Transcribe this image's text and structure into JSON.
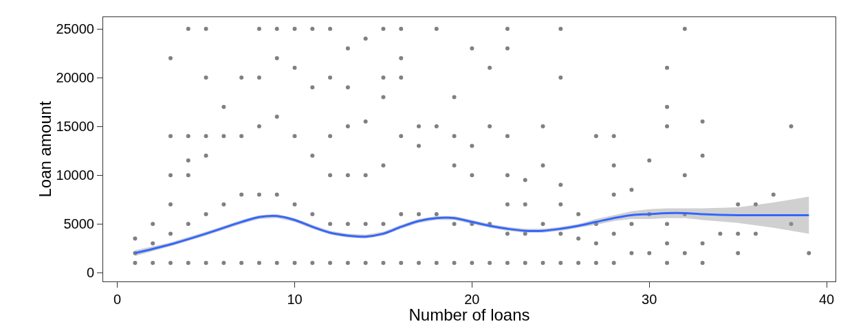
{
  "chart_data": {
    "type": "scatter",
    "xlabel": "Number of loans",
    "ylabel": "Loan amount",
    "xlim": [
      -0.8,
      40.5
    ],
    "ylim": [
      -900,
      26200
    ],
    "xticks": [
      0,
      10,
      20,
      30,
      40
    ],
    "yticks": [
      0,
      5000,
      10000,
      15000,
      20000,
      25000
    ],
    "grid": false,
    "marker": "circle",
    "series": [
      {
        "color": "#808080",
        "x": [
          1,
          1,
          1,
          2,
          2,
          2,
          3,
          3,
          3,
          3,
          3,
          3,
          4,
          4,
          4,
          4,
          4,
          4,
          5,
          5,
          5,
          5,
          5,
          5,
          6,
          6,
          6,
          6,
          7,
          7,
          7,
          7,
          8,
          8,
          8,
          8,
          8,
          9,
          9,
          9,
          9,
          9,
          10,
          10,
          10,
          10,
          10,
          11,
          11,
          11,
          11,
          11,
          12,
          12,
          12,
          12,
          12,
          12,
          13,
          13,
          13,
          13,
          13,
          13,
          14,
          14,
          14,
          14,
          14,
          15,
          15,
          15,
          15,
          15,
          15,
          16,
          16,
          16,
          16,
          16,
          16,
          17,
          17,
          17,
          17,
          18,
          18,
          18,
          18,
          19,
          19,
          19,
          19,
          19,
          20,
          20,
          20,
          20,
          20,
          21,
          21,
          21,
          21,
          22,
          22,
          22,
          22,
          22,
          22,
          22,
          23,
          23,
          23,
          23,
          24,
          24,
          24,
          24,
          25,
          25,
          25,
          25,
          25,
          25,
          26,
          26,
          26,
          27,
          27,
          27,
          27,
          28,
          28,
          28,
          28,
          28,
          29,
          29,
          29,
          30,
          30,
          30,
          31,
          31,
          31,
          31,
          31,
          31,
          32,
          32,
          32,
          32,
          33,
          33,
          33,
          33,
          34,
          35,
          35,
          35,
          36,
          36,
          37,
          38,
          38,
          39
        ],
        "values": [
          1000,
          2000,
          3500,
          1000,
          3000,
          5000,
          1000,
          4000,
          7000,
          10000,
          14000,
          22000,
          1000,
          5000,
          10000,
          11500,
          14000,
          25000,
          1000,
          6000,
          12000,
          14000,
          20000,
          25000,
          1000,
          7000,
          14000,
          17000,
          1000,
          8000,
          14000,
          20000,
          1000,
          8000,
          15000,
          20000,
          25000,
          1000,
          8000,
          16000,
          22000,
          25000,
          1000,
          7000,
          14000,
          21000,
          25000,
          1000,
          6000,
          12000,
          19000,
          25000,
          1000,
          5000,
          10000,
          14000,
          20000,
          25000,
          1000,
          5000,
          10000,
          15000,
          19000,
          23000,
          1000,
          5000,
          10000,
          15500,
          24000,
          1000,
          5000,
          11000,
          18000,
          20000,
          25000,
          1000,
          6000,
          14000,
          20000,
          22000,
          25000,
          1000,
          6000,
          13000,
          15000,
          1000,
          6000,
          15000,
          25000,
          1000,
          5000,
          11000,
          14000,
          18000,
          1000,
          5000,
          10000,
          13000,
          23000,
          1000,
          5000,
          15000,
          21000,
          1000,
          4000,
          7000,
          10000,
          14000,
          23000,
          25000,
          1000,
          4000,
          7000,
          9500,
          1000,
          5000,
          11000,
          15000,
          1000,
          4000,
          7000,
          9000,
          20000,
          25000,
          1000,
          3500,
          6000,
          1000,
          3000,
          5000,
          14000,
          1000,
          4000,
          8000,
          11000,
          14000,
          2000,
          5000,
          8500,
          2000,
          6000,
          11500,
          1000,
          3000,
          5000,
          15000,
          17000,
          21000,
          2000,
          6000,
          10000,
          25000,
          1000,
          3000,
          12000,
          15500,
          4000,
          2000,
          4000,
          7000,
          4000,
          7000,
          8000,
          5000,
          15000,
          2000
        ]
      },
      {
        "type": "line",
        "color": "#3366ff",
        "line_style": "solid",
        "marker": "none",
        "x": [
          1,
          3,
          5,
          7,
          8,
          9,
          10,
          11,
          12,
          13,
          14,
          15,
          16,
          17,
          18,
          19,
          20,
          21,
          22,
          23,
          24,
          25,
          26,
          27,
          28,
          29,
          30,
          31,
          32,
          33,
          35,
          37,
          39
        ],
        "values": [
          2000,
          2900,
          4000,
          5200,
          5700,
          5800,
          5400,
          4700,
          4100,
          3800,
          3700,
          4000,
          4700,
          5300,
          5600,
          5600,
          5200,
          4800,
          4500,
          4300,
          4300,
          4500,
          4800,
          5200,
          5600,
          5900,
          6000,
          6100,
          6100,
          6000,
          5900,
          5900,
          5900
        ],
        "lower": [
          1700,
          2700,
          3800,
          5000,
          5500,
          5600,
          5200,
          4500,
          3900,
          3600,
          3500,
          3800,
          4500,
          5100,
          5400,
          5400,
          5000,
          4600,
          4300,
          4100,
          4100,
          4300,
          4600,
          4900,
          5300,
          5500,
          5500,
          5600,
          5600,
          5400,
          5100,
          4600,
          4000
        ],
        "upper": [
          2300,
          3100,
          4200,
          5400,
          5900,
          6000,
          5600,
          4900,
          4300,
          4000,
          3900,
          4200,
          4900,
          5500,
          5800,
          5800,
          5400,
          5000,
          4700,
          4500,
          4500,
          4700,
          5000,
          5500,
          5900,
          6300,
          6500,
          6600,
          6600,
          6600,
          6700,
          7200,
          7800
        ]
      }
    ]
  }
}
